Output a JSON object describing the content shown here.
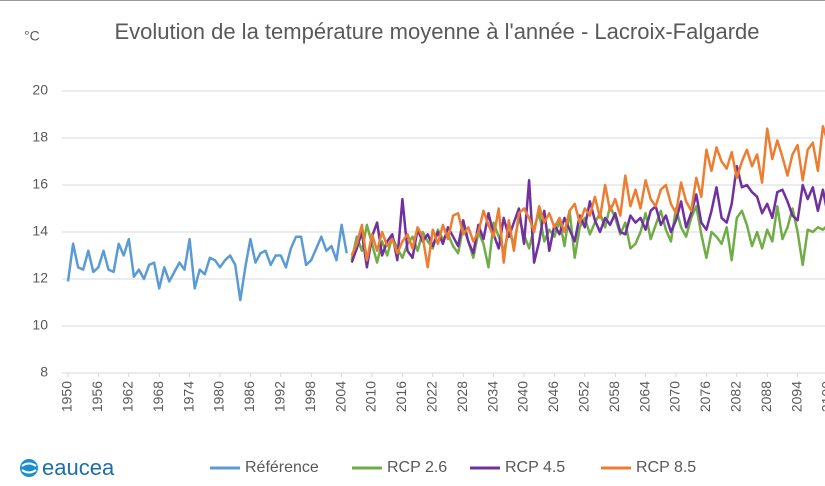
{
  "chart_data": {
    "type": "line",
    "title": "Evolution de la température moyenne à l'année - Lacroix-Falgarde",
    "y_label": "°C",
    "logo": "eaucea",
    "xlim": [
      1950,
      2100
    ],
    "xticks": [
      1950,
      1956,
      1962,
      1968,
      1974,
      1980,
      1986,
      1992,
      1998,
      2004,
      2010,
      2016,
      2022,
      2028,
      2034,
      2040,
      2046,
      2052,
      2058,
      2064,
      2070,
      2076,
      2082,
      2088,
      2094,
      2100
    ],
    "ylim": [
      8,
      20
    ],
    "yticks": [
      8,
      10,
      12,
      14,
      16,
      18,
      20
    ],
    "grid": true,
    "legend": "bottom",
    "series": [
      {
        "name": "Référence",
        "color": "#5b9bd5",
        "x": [
          1950,
          1951,
          1952,
          1953,
          1954,
          1955,
          1956,
          1957,
          1958,
          1959,
          1960,
          1961,
          1962,
          1963,
          1964,
          1965,
          1966,
          1967,
          1968,
          1969,
          1970,
          1971,
          1972,
          1973,
          1974,
          1975,
          1976,
          1977,
          1978,
          1979,
          1980,
          1981,
          1982,
          1983,
          1984,
          1985,
          1986,
          1987,
          1988,
          1989,
          1990,
          1991,
          1992,
          1993,
          1994,
          1995,
          1996,
          1997,
          1998,
          1999,
          2000,
          2001,
          2002,
          2003,
          2004,
          2005
        ],
        "values": [
          11.9,
          13.5,
          12.5,
          12.4,
          13.2,
          12.3,
          12.5,
          13.2,
          12.4,
          12.3,
          13.5,
          13.0,
          13.7,
          12.1,
          12.4,
          12.0,
          12.6,
          12.7,
          11.6,
          12.5,
          11.9,
          12.3,
          12.7,
          12.4,
          13.7,
          11.6,
          12.4,
          12.2,
          12.9,
          12.8,
          12.5,
          12.8,
          13.0,
          12.6,
          11.1,
          12.5,
          13.7,
          12.7,
          13.1,
          13.2,
          12.6,
          13.0,
          13.0,
          12.5,
          13.3,
          13.8,
          13.8,
          12.6,
          12.8,
          13.3,
          13.8,
          13.2,
          13.4,
          12.8,
          14.3,
          13.1
        ]
      },
      {
        "name": "RCP 2.6",
        "color": "#70ad47",
        "x": [
          2006,
          2007,
          2008,
          2009,
          2010,
          2011,
          2012,
          2013,
          2014,
          2015,
          2016,
          2017,
          2018,
          2019,
          2020,
          2021,
          2022,
          2023,
          2024,
          2025,
          2026,
          2027,
          2028,
          2029,
          2030,
          2031,
          2032,
          2033,
          2034,
          2035,
          2036,
          2037,
          2038,
          2039,
          2040,
          2041,
          2042,
          2043,
          2044,
          2045,
          2046,
          2047,
          2048,
          2049,
          2050,
          2051,
          2052,
          2053,
          2054,
          2055,
          2056,
          2057,
          2058,
          2059,
          2060,
          2061,
          2062,
          2063,
          2064,
          2065,
          2066,
          2067,
          2068,
          2069,
          2070,
          2071,
          2072,
          2073,
          2074,
          2075,
          2076,
          2077,
          2078,
          2079,
          2080,
          2081,
          2082,
          2083,
          2084,
          2085,
          2086,
          2087,
          2088,
          2089,
          2090,
          2091,
          2092,
          2093,
          2094,
          2095,
          2096,
          2097,
          2098,
          2099,
          2100
        ],
        "values": [
          12.8,
          13.8,
          13.2,
          14.3,
          13.5,
          12.7,
          13.6,
          13.0,
          13.8,
          13.3,
          12.9,
          13.5,
          13.8,
          13.2,
          14.0,
          13.6,
          13.3,
          14.1,
          13.7,
          13.9,
          13.4,
          13.1,
          14.2,
          13.6,
          12.9,
          14.0,
          13.5,
          12.5,
          14.4,
          13.8,
          13.2,
          14.0,
          13.5,
          14.6,
          13.9,
          13.3,
          14.2,
          14.8,
          13.6,
          14.1,
          13.8,
          14.5,
          13.4,
          14.9,
          12.9,
          14.2,
          14.6,
          13.9,
          14.4,
          14.8,
          14.2,
          15.1,
          14.6,
          13.9,
          14.4,
          13.3,
          13.5,
          14.0,
          14.8,
          13.7,
          14.3,
          14.9,
          14.1,
          13.6,
          15.0,
          14.2,
          13.8,
          14.6,
          15.1,
          13.9,
          12.9,
          14.0,
          13.8,
          13.5,
          14.2,
          12.8,
          14.6,
          14.9,
          14.3,
          13.4,
          14.0,
          13.3,
          14.1,
          13.6,
          15.1,
          13.7,
          14.2,
          15.0,
          14.0,
          12.6,
          14.1,
          14.0,
          14.2,
          14.1,
          14.3
        ]
      },
      {
        "name": "RCP 4.5",
        "color": "#7030a0",
        "x": [
          2006,
          2007,
          2008,
          2009,
          2010,
          2011,
          2012,
          2013,
          2014,
          2015,
          2016,
          2017,
          2018,
          2019,
          2020,
          2021,
          2022,
          2023,
          2024,
          2025,
          2026,
          2027,
          2028,
          2029,
          2030,
          2031,
          2032,
          2033,
          2034,
          2035,
          2036,
          2037,
          2038,
          2039,
          2040,
          2041,
          2042,
          2043,
          2044,
          2045,
          2046,
          2047,
          2048,
          2049,
          2050,
          2051,
          2052,
          2053,
          2054,
          2055,
          2056,
          2057,
          2058,
          2059,
          2060,
          2061,
          2062,
          2063,
          2064,
          2065,
          2066,
          2067,
          2068,
          2069,
          2070,
          2071,
          2072,
          2073,
          2074,
          2075,
          2076,
          2077,
          2078,
          2079,
          2080,
          2081,
          2082,
          2083,
          2084,
          2085,
          2086,
          2087,
          2088,
          2089,
          2090,
          2091,
          2092,
          2093,
          2094,
          2095,
          2096,
          2097,
          2098,
          2099,
          2100
        ],
        "values": [
          12.7,
          13.3,
          14.0,
          12.5,
          13.8,
          14.4,
          13.0,
          13.6,
          13.9,
          12.8,
          15.4,
          13.2,
          12.9,
          14.1,
          13.6,
          13.9,
          13.4,
          14.0,
          13.5,
          14.2,
          13.8,
          13.4,
          14.5,
          13.6,
          13.1,
          14.3,
          13.7,
          14.8,
          13.9,
          13.3,
          14.6,
          13.8,
          14.4,
          15.0,
          13.5,
          16.2,
          12.7,
          13.6,
          14.9,
          13.2,
          14.3,
          13.9,
          14.6,
          14.1,
          13.6,
          14.7,
          14.2,
          15.3,
          14.5,
          14.0,
          14.6,
          14.3,
          14.8,
          14.0,
          13.9,
          14.7,
          14.4,
          14.6,
          14.1,
          14.9,
          15.1,
          14.3,
          14.7,
          14.0,
          14.5,
          15.3,
          14.2,
          14.8,
          15.6,
          14.4,
          14.1,
          14.9,
          15.9,
          14.6,
          14.4,
          15.2,
          16.8,
          15.9,
          16.0,
          15.7,
          15.5,
          14.8,
          15.2,
          14.6,
          15.7,
          15.8,
          15.3,
          14.7,
          14.5,
          16.0,
          15.4,
          15.9,
          14.9,
          15.8,
          14.7
        ]
      },
      {
        "name": "RCP 8.5",
        "color": "#ed7d31",
        "x": [
          2006,
          2007,
          2008,
          2009,
          2010,
          2011,
          2012,
          2013,
          2014,
          2015,
          2016,
          2017,
          2018,
          2019,
          2020,
          2021,
          2022,
          2023,
          2024,
          2025,
          2026,
          2027,
          2028,
          2029,
          2030,
          2031,
          2032,
          2033,
          2034,
          2035,
          2036,
          2037,
          2038,
          2039,
          2040,
          2041,
          2042,
          2043,
          2044,
          2045,
          2046,
          2047,
          2048,
          2049,
          2050,
          2051,
          2052,
          2053,
          2054,
          2055,
          2056,
          2057,
          2058,
          2059,
          2060,
          2061,
          2062,
          2063,
          2064,
          2065,
          2066,
          2067,
          2068,
          2069,
          2070,
          2071,
          2072,
          2073,
          2074,
          2075,
          2076,
          2077,
          2078,
          2079,
          2080,
          2081,
          2082,
          2083,
          2084,
          2085,
          2086,
          2087,
          2088,
          2089,
          2090,
          2091,
          2092,
          2093,
          2094,
          2095,
          2096,
          2097,
          2098,
          2099,
          2100
        ],
        "values": [
          13.0,
          13.5,
          14.3,
          12.8,
          13.9,
          13.2,
          14.0,
          13.4,
          13.7,
          13.1,
          13.6,
          13.9,
          13.3,
          14.2,
          13.8,
          12.5,
          14.1,
          13.5,
          14.3,
          13.7,
          14.7,
          14.8,
          13.9,
          14.2,
          13.6,
          14.0,
          14.9,
          14.3,
          13.8,
          15.0,
          12.7,
          14.5,
          13.2,
          14.8,
          15.0,
          14.6,
          14.0,
          15.1,
          14.4,
          14.8,
          14.2,
          14.6,
          14.0,
          14.9,
          15.2,
          14.4,
          15.0,
          14.7,
          15.5,
          14.6,
          16.0,
          14.9,
          15.4,
          14.7,
          16.4,
          15.1,
          15.8,
          15.0,
          16.2,
          15.4,
          15.1,
          15.8,
          16.0,
          15.2,
          14.8,
          16.1,
          15.3,
          14.9,
          16.3,
          15.5,
          17.5,
          16.6,
          17.6,
          17.0,
          16.7,
          17.4,
          16.3,
          17.0,
          17.5,
          16.8,
          17.3,
          16.1,
          18.4,
          17.1,
          17.9,
          17.2,
          16.4,
          17.3,
          17.7,
          16.2,
          17.5,
          17.8,
          16.6,
          18.5,
          17.8
        ]
      }
    ]
  }
}
